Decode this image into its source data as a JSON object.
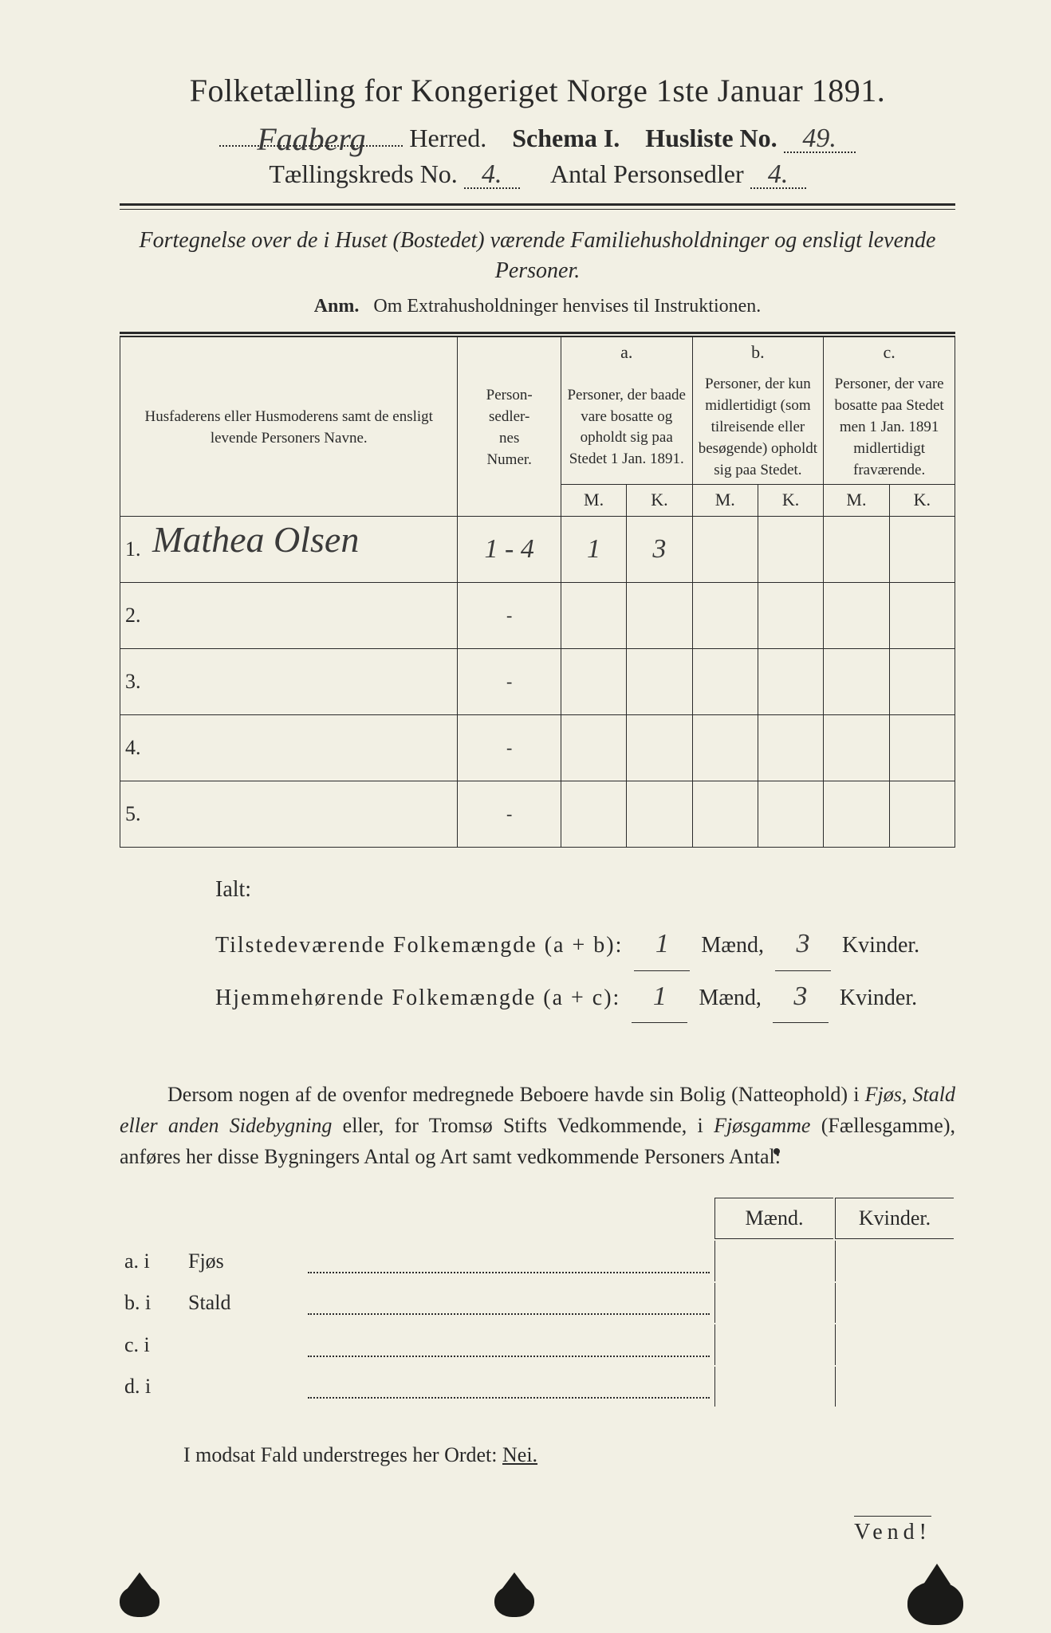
{
  "header": {
    "title": "Folketælling for Kongeriget Norge 1ste Januar 1891.",
    "herred_value": "Faaberg",
    "herred_label": "Herred.",
    "schema_label": "Schema I.",
    "husliste_label": "Husliste No.",
    "husliste_value": "49.",
    "kreds_label": "Tællingskreds No.",
    "kreds_value": "4.",
    "personsedler_label": "Antal Personsedler",
    "personsedler_value": "4."
  },
  "subheading": {
    "line": "Fortegnelse over de i Huset (Bostedet) værende Familiehusholdninger og ensligt levende Personer.",
    "anm_label": "Anm.",
    "anm_text": "Om Extrahusholdninger henvises til Instruktionen."
  },
  "table": {
    "col_name": "Husfaderens eller Husmoderens samt de ensligt levende Personers Navne.",
    "col_num": "Person-\nsedler-\nnes\nNumer.",
    "abc": {
      "a": "a.",
      "b": "b.",
      "c": "c."
    },
    "col_a": "Personer, der baade vare bosatte og opholdt sig paa Stedet 1 Jan. 1891.",
    "col_b": "Personer, der kun midlertidigt (som tilreisende eller besøgende) opholdt sig paa Stedet.",
    "col_c": "Personer, der vare bosatte paa Stedet men 1 Jan. 1891 midlertidigt fraværende.",
    "M": "M.",
    "K": "K.",
    "rows": [
      {
        "n": "1.",
        "name": "Mathea Olsen",
        "num": "1 - 4",
        "aM": "1",
        "aK": "3",
        "bM": "",
        "bK": "",
        "cM": "",
        "cK": ""
      },
      {
        "n": "2.",
        "name": "",
        "num": "-",
        "aM": "",
        "aK": "",
        "bM": "",
        "bK": "",
        "cM": "",
        "cK": ""
      },
      {
        "n": "3.",
        "name": "",
        "num": "-",
        "aM": "",
        "aK": "",
        "bM": "",
        "bK": "",
        "cM": "",
        "cK": ""
      },
      {
        "n": "4.",
        "name": "",
        "num": "-",
        "aM": "",
        "aK": "",
        "bM": "",
        "bK": "",
        "cM": "",
        "cK": ""
      },
      {
        "n": "5.",
        "name": "",
        "num": "-",
        "aM": "",
        "aK": "",
        "bM": "",
        "bK": "",
        "cM": "",
        "cK": ""
      }
    ]
  },
  "totals": {
    "ialt_label": "Ialt:",
    "line1_label": "Tilstedeværende Folkemængde (a + b):",
    "line1_m": "1",
    "line1_k": "3",
    "line2_label": "Hjemmehørende Folkemængde (a + c):",
    "line2_m": "1",
    "line2_k": "3",
    "maend": "Mænd,",
    "kvinder": "Kvinder."
  },
  "para": {
    "text1": "Dersom nogen af de ovenfor medregnede Beboere havde sin Bolig (Natteophold) i ",
    "fjos": "Fjøs, Stald eller anden Sidebygning",
    "text2": " eller, for Tromsø Stifts Vedkommende, i ",
    "fjosgamme": "Fjøsgamme",
    "text3": " (Fællesgamme), anføres her disse Bygningers Antal og Art samt vedkommende Personers Antal:"
  },
  "dwelling": {
    "maend": "Mænd.",
    "kvinder": "Kvinder.",
    "rows": [
      {
        "lab": "a.  i",
        "type": "Fjøs"
      },
      {
        "lab": "b.  i",
        "type": "Stald"
      },
      {
        "lab": "c.  i",
        "type": ""
      },
      {
        "lab": "d.  i",
        "type": ""
      }
    ]
  },
  "nei": {
    "text_pre": "I modsat Fald understreges her Ordet: ",
    "nei": "Nei."
  },
  "vend": "Vend!",
  "colors": {
    "paper": "#f2f0e4",
    "ink": "#2a2a2a",
    "handwriting": "#3a3a3a",
    "background": "#b8b8b0"
  }
}
